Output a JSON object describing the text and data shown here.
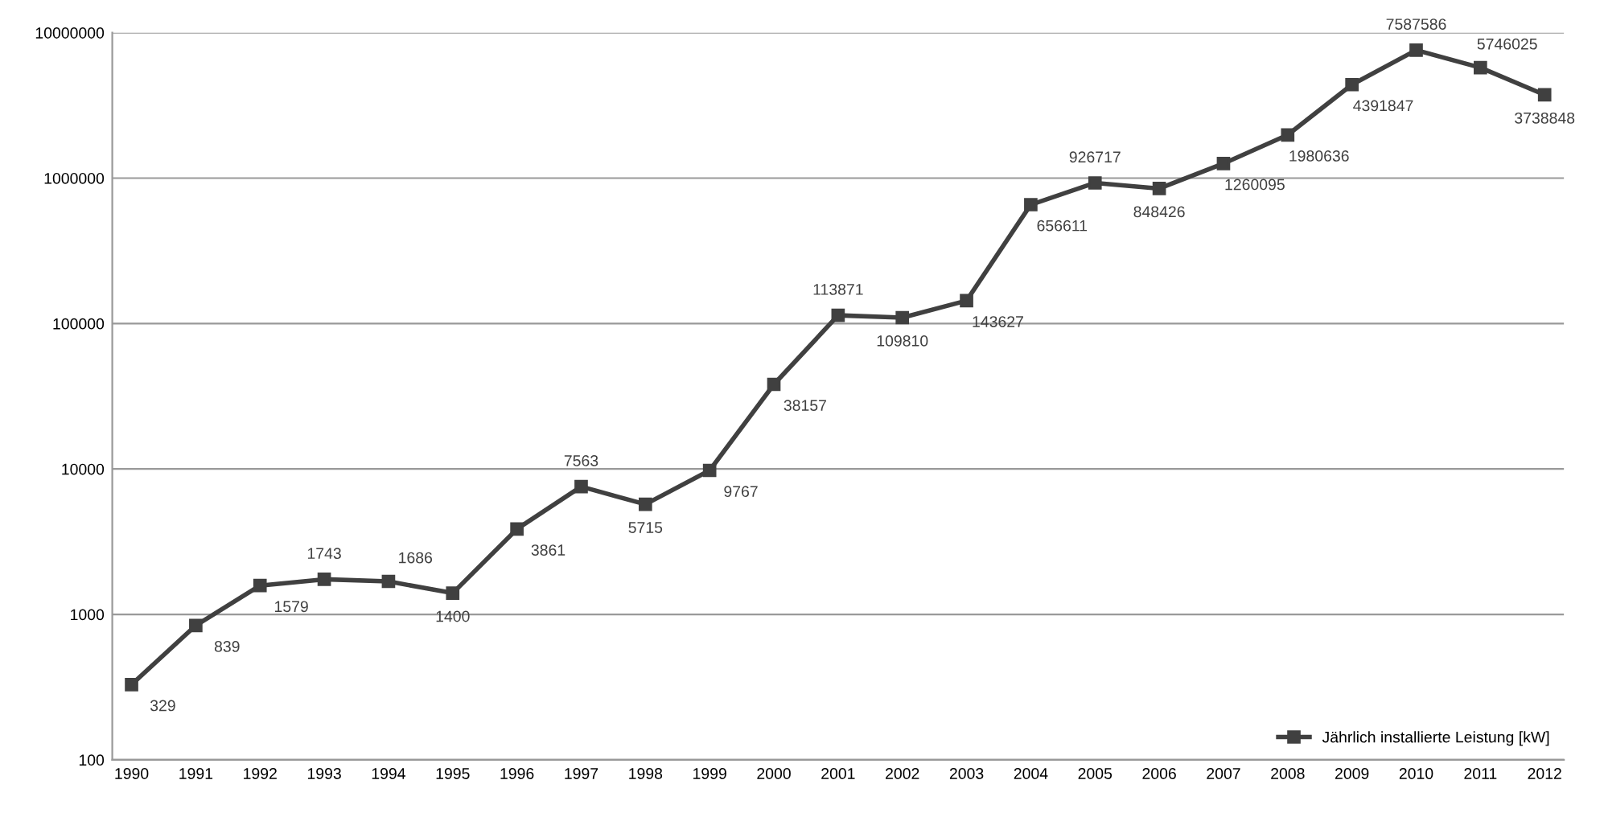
{
  "chart_data": {
    "type": "line",
    "categories": [
      "1990",
      "1991",
      "1992",
      "1993",
      "1994",
      "1995",
      "1996",
      "1997",
      "1998",
      "1999",
      "2000",
      "2001",
      "2002",
      "2003",
      "2004",
      "2005",
      "2006",
      "2007",
      "2008",
      "2009",
      "2010",
      "2011",
      "2012"
    ],
    "series": [
      {
        "name": "Jährlich installierte Leistung [kW]",
        "color": "#404040",
        "values": [
          329,
          839,
          1579,
          1743,
          1686,
          1400,
          3861,
          7563,
          5715,
          9767,
          38157,
          113871,
          109810,
          143627,
          656611,
          926717,
          848426,
          1260095,
          1980636,
          4391847,
          7587586,
          5746025,
          3738848
        ]
      }
    ],
    "log": true,
    "ylim": [
      100,
      10000000
    ],
    "yticks": [
      100,
      1000,
      10000,
      100000,
      1000000,
      10000000
    ],
    "grid": "y",
    "legend": "bottom right",
    "marker": "square",
    "line_style": "solid",
    "data_labels": true
  }
}
